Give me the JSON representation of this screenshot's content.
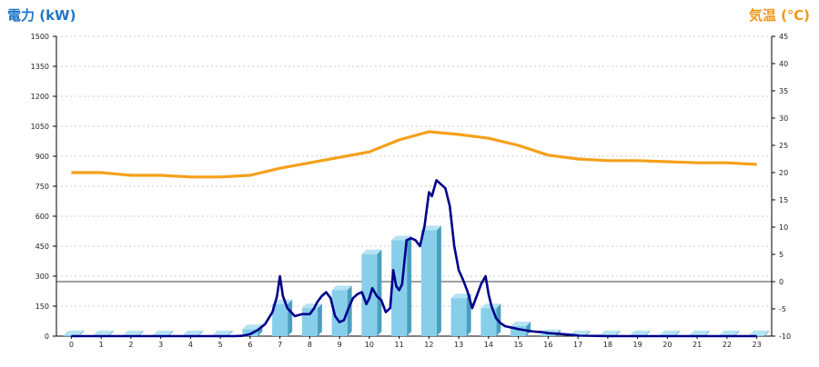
{
  "chart_data": {
    "type": "bar",
    "title": "",
    "left_axis_label": "電力 (kW)",
    "right_axis_label": "気温 (℃)",
    "left_ylim": [
      0,
      1500
    ],
    "left_ticks": [
      0,
      150,
      300,
      450,
      600,
      750,
      900,
      1050,
      1200,
      1350,
      1500
    ],
    "right_ylim": [
      -10,
      45
    ],
    "right_ticks": [
      -10,
      -5,
      0,
      5,
      10,
      15,
      20,
      25,
      30,
      35,
      40,
      45
    ],
    "categories": [
      0,
      1,
      2,
      3,
      4,
      5,
      6,
      7,
      8,
      9,
      10,
      11,
      12,
      13,
      14,
      15,
      16,
      17,
      18,
      19,
      20,
      21,
      22,
      23
    ],
    "grid": true,
    "reference_line_right_axis": 0,
    "series": [
      {
        "kind": "bar",
        "axis": "left",
        "color": "#87ceeb",
        "values": [
          5,
          5,
          5,
          5,
          5,
          5,
          35,
          160,
          140,
          230,
          410,
          480,
          530,
          190,
          140,
          50,
          10,
          5,
          5,
          5,
          5,
          5,
          5,
          5
        ]
      },
      {
        "kind": "line",
        "axis": "left",
        "color": "#00008b",
        "x": [
          0,
          0.5,
          1,
          1.5,
          2,
          2.5,
          3,
          3.5,
          4,
          4.5,
          5,
          5.5,
          5.75,
          6,
          6.25,
          6.5,
          6.75,
          6.9,
          7,
          7.1,
          7.25,
          7.5,
          7.75,
          8,
          8.15,
          8.25,
          8.4,
          8.55,
          8.7,
          8.85,
          9,
          9.15,
          9.3,
          9.45,
          9.6,
          9.75,
          9.9,
          10,
          10.1,
          10.25,
          10.4,
          10.55,
          10.7,
          10.8,
          10.9,
          11,
          11.1,
          11.25,
          11.4,
          11.55,
          11.7,
          11.85,
          12,
          12.1,
          12.25,
          12.4,
          12.55,
          12.7,
          12.85,
          13,
          13.15,
          13.3,
          13.45,
          13.6,
          13.75,
          13.9,
          14,
          14.1,
          14.25,
          14.4,
          14.55,
          14.7,
          14.85,
          15,
          15.2,
          15.4,
          15.6,
          15.8,
          16,
          16.5,
          17,
          18,
          19,
          20,
          21,
          22,
          23
        ],
        "values": [
          0,
          0,
          0,
          0,
          0,
          0,
          0,
          0,
          0,
          0,
          0,
          0,
          2,
          10,
          30,
          60,
          120,
          200,
          300,
          200,
          140,
          100,
          110,
          110,
          140,
          170,
          200,
          220,
          190,
          100,
          70,
          80,
          140,
          190,
          210,
          220,
          160,
          190,
          240,
          200,
          180,
          120,
          140,
          330,
          250,
          230,
          260,
          480,
          490,
          480,
          450,
          550,
          720,
          700,
          780,
          760,
          740,
          650,
          450,
          330,
          280,
          220,
          140,
          200,
          260,
          300,
          210,
          150,
          90,
          65,
          50,
          45,
          40,
          35,
          30,
          25,
          22,
          20,
          15,
          10,
          3,
          0,
          0,
          0,
          0,
          0,
          0
        ],
        "note": ""
      },
      {
        "kind": "line",
        "axis": "right",
        "color": "#f5a01a",
        "x": [
          0,
          1,
          2,
          3,
          4,
          5,
          6,
          7,
          8,
          9,
          10,
          11,
          12,
          13,
          14,
          15,
          16,
          17,
          18,
          19,
          20,
          21,
          22,
          23
        ],
        "values": [
          20,
          20,
          19.5,
          19.5,
          19.2,
          19.2,
          19.5,
          20.8,
          21.8,
          22.8,
          23.8,
          26,
          27.5,
          27,
          26.3,
          25,
          23.2,
          22.5,
          22.2,
          22.2,
          22,
          21.8,
          21.8,
          21.5
        ]
      }
    ]
  }
}
